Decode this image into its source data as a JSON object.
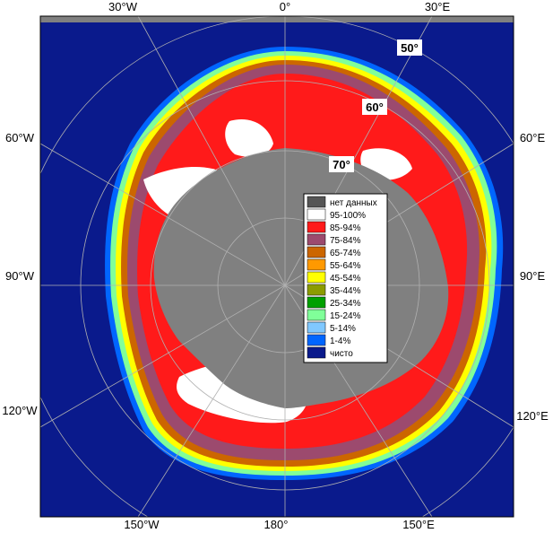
{
  "map": {
    "longitude_labels": {
      "top": [
        "30°W",
        "0°",
        "30°E"
      ],
      "left": [
        "60°W",
        "90°W",
        "120°W"
      ],
      "right": [
        "60°E",
        "90°E",
        "120°E"
      ],
      "bottom": [
        "150°W",
        "180°",
        "150°E"
      ]
    },
    "latitude_labels": [
      "50°",
      "60°",
      "70°"
    ],
    "colors": {
      "ocean": "#0a1a8c",
      "land": "#808080",
      "ice_core": "#ffffff",
      "ice_85_94": "#ff1a1a",
      "ice_75_84": "#9c4a6e",
      "ice_65_74": "#cc6600",
      "ice_55_64": "#ff9900",
      "ice_45_54": "#ffff00",
      "ice_35_44": "#8c9c00",
      "ice_25_34": "#00a000",
      "ice_15_24": "#80ff99",
      "ice_5_14": "#80c8ff",
      "ice_1_4": "#0066ff",
      "grid": "#aaaaaa"
    }
  },
  "legend": {
    "items": [
      {
        "label": "нет данных",
        "color": "#555555"
      },
      {
        "label": "95-100%",
        "color": "#ffffff"
      },
      {
        "label": "85-94%",
        "color": "#ff1a1a"
      },
      {
        "label": "75-84%",
        "color": "#9c4a6e"
      },
      {
        "label": "65-74%",
        "color": "#cc6600"
      },
      {
        "label": "55-64%",
        "color": "#ff9900"
      },
      {
        "label": "45-54%",
        "color": "#ffff00"
      },
      {
        "label": "35-44%",
        "color": "#8c9c00"
      },
      {
        "label": "25-34%",
        "color": "#00a000"
      },
      {
        "label": "15-24%",
        "color": "#80ff99"
      },
      {
        "label": "5-14%",
        "color": "#80c8ff"
      },
      {
        "label": "1-4%",
        "color": "#0066ff"
      },
      {
        "label": "чисто",
        "color": "#0a1a8c"
      }
    ]
  }
}
